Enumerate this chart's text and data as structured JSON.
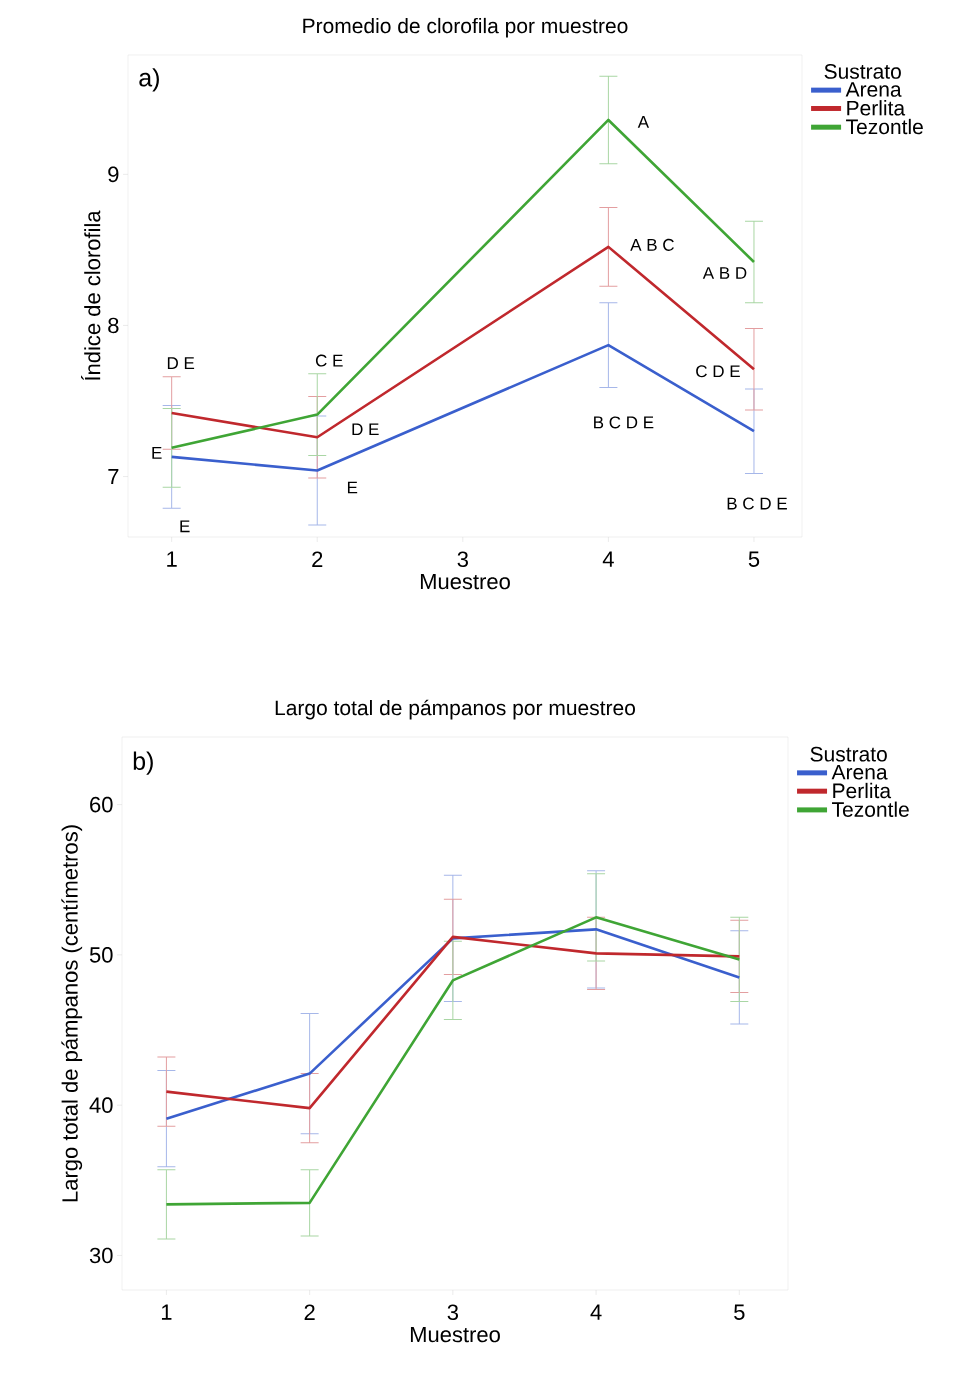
{
  "chart_data": [
    {
      "type": "line",
      "title": "Promedio de clorofila por muestreo",
      "xlabel": "Muestreo",
      "ylabel": "Índice de clorofila",
      "legend_title": "Sustrato",
      "legend": "right",
      "marker": "none",
      "line_style": "solid",
      "x": [
        1,
        2,
        4,
        5
      ],
      "xlim": [
        0.7,
        5.33
      ],
      "ylim": [
        6.6,
        9.79
      ],
      "xticks": [
        1,
        2,
        3,
        4,
        5
      ],
      "yticks": [
        7,
        8,
        9
      ],
      "series": [
        {
          "name": "Arena",
          "color": "#3a5fcd",
          "values": [
            7.13,
            7.04,
            7.87,
            7.3
          ],
          "errors": [
            0.34,
            0.36,
            0.28,
            0.28
          ]
        },
        {
          "name": "Perlita",
          "color": "#c0282d",
          "values": [
            7.42,
            7.26,
            8.52,
            7.71
          ],
          "errors": [
            0.24,
            0.27,
            0.26,
            0.27
          ]
        },
        {
          "name": "Tezontle",
          "color": "#3fa535",
          "values": [
            7.19,
            7.41,
            9.36,
            8.42
          ],
          "errors": [
            0.26,
            0.27,
            0.29,
            0.27
          ]
        }
      ],
      "annotations": [
        "a)",
        {
          "text": "D E",
          "x": 1,
          "y": 7.42
        },
        {
          "text": "E",
          "x": 1,
          "y": 7.19
        },
        {
          "text": "E",
          "x": 1,
          "y": 6.79
        },
        {
          "text": "C E",
          "x": 2,
          "y": 7.41
        },
        {
          "text": "D E",
          "x": 2,
          "y": 7.26
        },
        {
          "text": "E",
          "x": 2,
          "y": 7.04
        },
        {
          "text": "A",
          "x": 4,
          "y": 9.36
        },
        {
          "text": "A B C",
          "x": 4,
          "y": 8.52
        },
        {
          "text": "B C D E",
          "x": 4,
          "y": 7.59
        },
        {
          "text": "A B D",
          "x": 5,
          "y": 8.42
        },
        {
          "text": "C D E",
          "x": 5,
          "y": 7.71
        },
        {
          "text": "B C D E",
          "x": 5,
          "y": 7.02
        }
      ]
    },
    {
      "type": "line",
      "title": "Largo total de pámpanos por muestreo",
      "xlabel": "Muestreo",
      "ylabel": "Largo total de pámpanos (centímetros)",
      "legend_title": "Sustrato",
      "legend": "right",
      "marker": "none",
      "line_style": "solid",
      "x": [
        1,
        2,
        3,
        4,
        5
      ],
      "xlim": [
        0.69,
        5.34
      ],
      "ylim": [
        27.7,
        64.5
      ],
      "xticks": [
        1,
        2,
        3,
        4,
        5
      ],
      "yticks": [
        30,
        40,
        50,
        60
      ],
      "series": [
        {
          "name": "Arena",
          "color": "#3a5fcd",
          "values": [
            39.1,
            42.1,
            51.1,
            51.7,
            48.5
          ],
          "errors": [
            3.2,
            4.0,
            4.2,
            3.9,
            3.1
          ]
        },
        {
          "name": "Perlita",
          "color": "#c0282d",
          "values": [
            40.9,
            39.8,
            51.2,
            50.1,
            49.9
          ],
          "errors": [
            2.3,
            2.3,
            2.5,
            2.4,
            2.4
          ]
        },
        {
          "name": "Tezontle",
          "color": "#3fa535",
          "values": [
            33.4,
            33.5,
            48.3,
            52.5,
            49.7
          ],
          "errors": [
            2.3,
            2.2,
            2.6,
            2.9,
            2.8
          ]
        }
      ],
      "annotations": [
        "b)"
      ]
    }
  ]
}
